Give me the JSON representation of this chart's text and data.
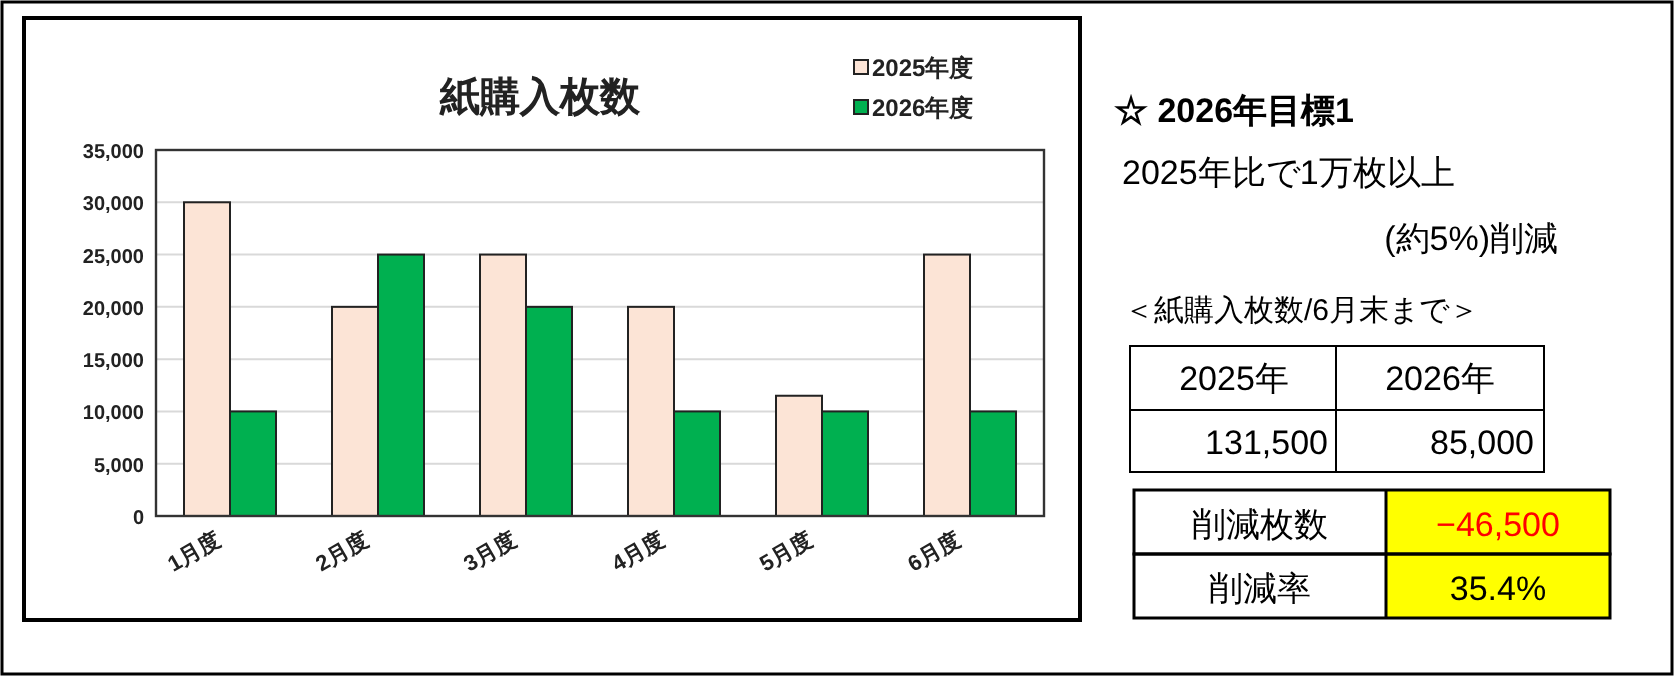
{
  "chart_data": [
    {
      "type": "bar",
      "title": "紙購入枚数",
      "categories": [
        "1月度",
        "2月度",
        "3月度",
        "4月度",
        "5月度",
        "6月度"
      ],
      "series": [
        {
          "name": "2025年度",
          "color": "#fce4d6",
          "values": [
            30000,
            20000,
            25000,
            20000,
            11500,
            25000
          ]
        },
        {
          "name": "2026年度",
          "color": "#00b050",
          "values": [
            10000,
            25000,
            20000,
            10000,
            10000,
            10000
          ]
        }
      ],
      "ylim": [
        0,
        35000
      ],
      "yticks": [
        {
          "value": 0,
          "label": "0"
        },
        {
          "value": 5000,
          "label": "5,000"
        },
        {
          "value": 10000,
          "label": "10,000"
        },
        {
          "value": 15000,
          "label": "15,000"
        },
        {
          "value": 20000,
          "label": "20,000"
        },
        {
          "value": 25000,
          "label": "25,000"
        },
        {
          "value": 30000,
          "label": "30,000"
        },
        {
          "value": 35000,
          "label": "35,000"
        }
      ],
      "grid": "y",
      "legend": "top right"
    },
    {
      "type": "other",
      "annotations": [
        "☆ 2026年目標1",
        "2025年比で1万枚以上",
        "(約5%)削減",
        "＜紙購入枚数/6月末まで＞",
        "2025年",
        "2026年",
        "131,500",
        "85,000",
        "削減枚数",
        "−46,500",
        "削減率",
        "35.4%"
      ]
    }
  ]
}
